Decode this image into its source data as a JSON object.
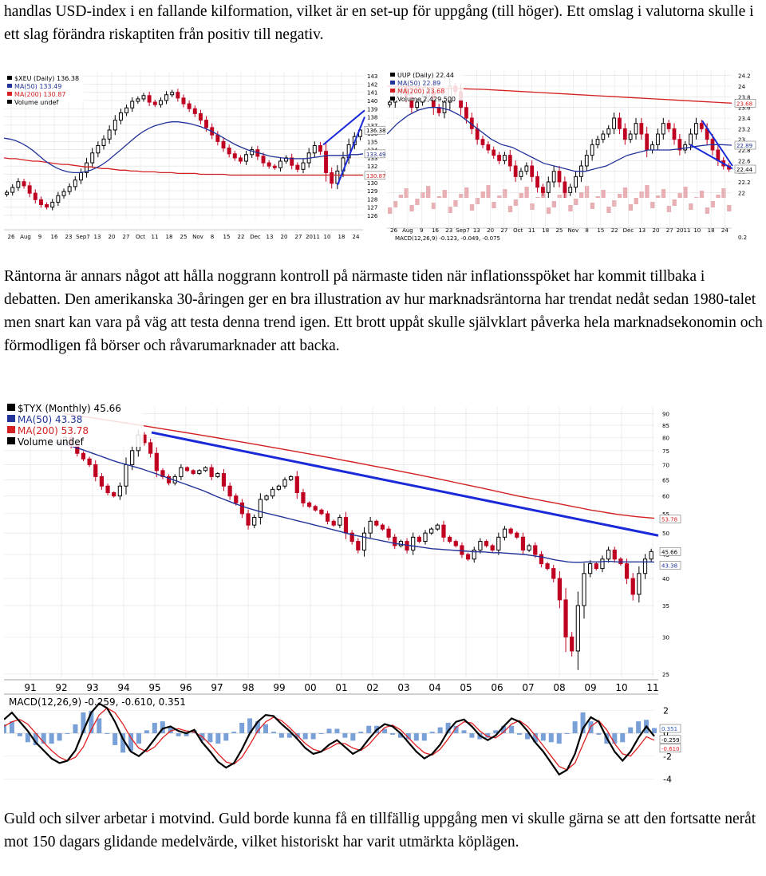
{
  "text": {
    "intro": "handlas USD-index i en fallande kilformation, vilket är en set-up för uppgång (till höger). Ett omslag i valutorna skulle i ett slag förändra riskaptiten från positiv till negativ.",
    "rates": "Räntorna är annars något att hålla noggrann kontroll på närmaste tiden när inflationsspöket har kommit tillbaka i debatten. Den amerikanska 30-åringen ger en bra illustration av hur marknadsräntorna har trendat nedåt sedan 1980-talet men snart kan vara på väg att testa denna trend igen. Ett brott uppåt skulle självklart påverka hela marknadsekonomin och förmodligen få börser och råvarumarknader att backa.",
    "gold": "Guld och silver arbetar i motvind. Guld borde kunna få en tillfällig uppgång men vi skulle gärna se att den fortsatte neråt mot 150 dagars glidande medelvärde, vilket historiskt har varit utmärkta köplägen."
  },
  "colors": {
    "candle_up": "#000000",
    "candle_down": "#c00020",
    "ma50": "#223399",
    "ma200": "#d42020",
    "trend": "#1a2ad8",
    "volume": "#e8b0b4",
    "grid": "#e0e0e0"
  },
  "chart_data": [
    {
      "type": "candlestick",
      "legend": [
        "$XEU (Daily) 136.38",
        "MA(50) 133.49",
        "MA(200) 130.87",
        "Volume undef"
      ],
      "x_ticks": [
        "26",
        "Aug",
        "9",
        "16",
        "23",
        "Sep7",
        "13",
        "20",
        "27",
        "Oct",
        "11",
        "18",
        "25",
        "Nov",
        "8",
        "15",
        "22",
        "Dec",
        "13",
        "20",
        "27",
        "2011",
        "10",
        "18",
        "24"
      ],
      "y_ticks": [
        143,
        142,
        141,
        140,
        139,
        138,
        137,
        136,
        135,
        134,
        133,
        132,
        131,
        130,
        129,
        128,
        127,
        126
      ],
      "ylim": [
        125.5,
        143.5
      ],
      "price_tags": {
        "last": "136.38",
        "ma50": "133.49",
        "ma200": "130.87"
      },
      "close": [
        128.8,
        129.4,
        130.1,
        129.6,
        128.7,
        127.9,
        127.3,
        127.0,
        127.6,
        128.4,
        128.9,
        129.5,
        130.3,
        131.2,
        132.4,
        133.6,
        134.5,
        135.3,
        136.4,
        137.6,
        138.5,
        139.1,
        139.9,
        140.2,
        140.6,
        139.8,
        139.5,
        140.0,
        140.7,
        141.0,
        140.3,
        139.6,
        139.0,
        138.4,
        137.6,
        136.7,
        135.8,
        135.0,
        134.2,
        133.5,
        133.0,
        132.6,
        133.4,
        134.0,
        133.2,
        132.4,
        132.0,
        131.8,
        132.6,
        133.0,
        132.1,
        131.6,
        132.4,
        133.6,
        134.5,
        133.8,
        131.2,
        129.9,
        131.4,
        133.0,
        134.6,
        135.6,
        136.4
      ],
      "ma50": [
        135.4,
        135.3,
        135.1,
        134.8,
        134.4,
        133.9,
        133.3,
        132.7,
        132.2,
        131.8,
        131.5,
        131.3,
        131.2,
        131.2,
        131.3,
        131.5,
        131.8,
        132.2,
        132.7,
        133.3,
        133.9,
        134.5,
        135.1,
        135.7,
        136.2,
        136.6,
        136.9,
        137.1,
        137.3,
        137.4,
        137.4,
        137.3,
        137.2,
        137.0,
        136.8,
        136.5,
        136.2,
        135.8,
        135.4,
        135.0,
        134.6,
        134.3,
        134.0,
        133.8,
        133.6,
        133.4,
        133.2,
        133.1,
        133.0,
        132.9,
        132.9,
        132.9,
        132.9,
        133.0,
        133.1,
        133.2,
        133.3,
        133.3,
        133.3,
        133.3,
        133.4,
        133.4,
        133.5
      ],
      "ma200": [
        133.0,
        132.9,
        132.9,
        132.8,
        132.7,
        132.6,
        132.6,
        132.5,
        132.4,
        132.3,
        132.2,
        132.2,
        132.1,
        132.0,
        131.9,
        131.9,
        131.8,
        131.7,
        131.7,
        131.6,
        131.5,
        131.5,
        131.4,
        131.4,
        131.3,
        131.3,
        131.3,
        131.2,
        131.2,
        131.2,
        131.1,
        131.1,
        131.1,
        131.1,
        131.0,
        131.0,
        131.0,
        131.0,
        131.0,
        130.9,
        130.9,
        130.9,
        130.9,
        130.9,
        130.9,
        130.9,
        130.9,
        130.9,
        130.9,
        130.9,
        130.9,
        130.9,
        130.9,
        130.9,
        130.9,
        130.9,
        130.9,
        130.9,
        130.9,
        130.9,
        130.9,
        130.9,
        130.9
      ]
    },
    {
      "type": "candlestick",
      "legend": [
        "UUP (Daily) 22.44",
        "MA(50) 22.89",
        "MA(200) 23.68",
        "Volume 2,429,500"
      ],
      "x_ticks": [
        "26",
        "Aug",
        "9",
        "16",
        "23",
        "Sep7",
        "13",
        "20",
        "27",
        "Oct",
        "11",
        "18",
        "25",
        "Nov",
        "8",
        "15",
        "22",
        "Dec",
        "13",
        "20",
        "27",
        "2011",
        "10",
        "18",
        "24"
      ],
      "y_ticks": [
        24.2,
        24.0,
        23.8,
        23.6,
        23.4,
        23.2,
        23.0,
        22.8,
        22.6,
        22.4,
        22.2,
        22.0
      ],
      "ylim": [
        21.9,
        24.3
      ],
      "price_tags": {
        "ma200": "23.68",
        "ma50": "22.89",
        "last": "22.44"
      },
      "macd_label": "MACD(12,26,9) -0.123, -0.049, -0.075",
      "macd_ticks": [
        "0.2"
      ],
      "close": [
        23.7,
        23.9,
        24.0,
        23.8,
        23.6,
        23.7,
        23.8,
        23.9,
        23.6,
        23.5,
        23.7,
        24.0,
        23.9,
        23.6,
        23.4,
        23.2,
        23.0,
        22.9,
        22.8,
        22.7,
        22.6,
        22.7,
        22.5,
        22.3,
        22.4,
        22.5,
        22.3,
        22.1,
        22.0,
        22.2,
        22.4,
        22.2,
        22.0,
        22.1,
        22.3,
        22.5,
        22.7,
        22.9,
        23.0,
        23.1,
        23.2,
        23.4,
        23.2,
        23.0,
        23.1,
        23.3,
        23.1,
        22.8,
        22.9,
        23.1,
        23.3,
        23.2,
        23.0,
        22.8,
        22.9,
        23.1,
        23.3,
        23.2,
        23.0,
        22.8,
        22.6,
        22.5,
        22.44
      ],
      "ma50": [
        23.1,
        23.3,
        23.45,
        23.55,
        23.6,
        23.6,
        23.55,
        23.45,
        23.3,
        23.15,
        23.0,
        22.9,
        22.85,
        22.75,
        22.65,
        22.55,
        22.5,
        22.45,
        22.4,
        22.4,
        22.45,
        22.5,
        22.6,
        22.7,
        22.75,
        22.8,
        22.8,
        22.8,
        22.82,
        22.85,
        22.88,
        22.9,
        22.9,
        22.89
      ],
      "ma200": [
        24.0,
        23.99,
        23.98,
        23.96,
        23.95,
        23.94,
        23.92,
        23.9,
        23.88,
        23.86,
        23.84,
        23.82,
        23.8,
        23.78,
        23.76,
        23.74,
        23.72,
        23.7,
        23.68
      ]
    },
    {
      "type": "candlestick",
      "legend": [
        "$TYX (Monthly) 45.66",
        "MA(50) 43.38",
        "MA(200) 53.78",
        "Volume undef"
      ],
      "x_ticks": [
        "91",
        "92",
        "93",
        "94",
        "95",
        "96",
        "97",
        "98",
        "99",
        "00",
        "01",
        "02",
        "03",
        "04",
        "05",
        "06",
        "07",
        "08",
        "09",
        "10",
        "11"
      ],
      "y_ticks": [
        90,
        85,
        80,
        75,
        70,
        65,
        60,
        55,
        50,
        45,
        40,
        35,
        30,
        25
      ],
      "y_scale": "log",
      "ylim": [
        24.5,
        93
      ],
      "price_tags": {
        "ma200": "53.78",
        "last": "45.66",
        "ma50": "43.38"
      },
      "close": [
        78,
        80,
        77,
        74,
        72,
        70,
        66,
        63,
        61,
        60,
        63,
        70,
        75,
        81,
        78,
        74,
        68,
        66,
        64,
        66,
        69,
        68,
        67,
        68,
        69,
        66,
        67,
        63,
        60,
        58,
        55,
        52,
        54,
        59,
        60,
        62,
        63,
        65,
        66,
        61,
        58,
        57,
        56,
        55,
        53,
        52,
        54,
        50,
        48,
        46,
        50,
        53,
        52,
        51,
        49,
        47,
        48,
        46,
        49,
        48,
        50,
        51,
        52,
        49,
        48,
        47,
        45,
        44,
        46,
        48,
        47,
        46,
        49,
        51,
        50,
        49,
        46,
        47,
        45,
        43,
        42,
        40,
        36,
        30,
        28,
        35,
        41,
        43,
        42,
        44,
        46,
        44,
        43,
        40,
        37,
        41,
        44,
        45.66
      ],
      "ma50": [
        78,
        77.5,
        77,
        76.3,
        75.6,
        74.8,
        74,
        73.2,
        72.4,
        71.6,
        70.9,
        70.3,
        69.7,
        69.1,
        68.5,
        67.8,
        67.1,
        66.4,
        65.7,
        65,
        64.3,
        63.6,
        62.9,
        62.2,
        61.5,
        60.7,
        59.9,
        59.2,
        58.5,
        57.8,
        57.2,
        56.6,
        56.1,
        55.6,
        55.2,
        54.8,
        54.4,
        54,
        53.6,
        53.2,
        52.8,
        52.4,
        52,
        51.6,
        51.2,
        50.8,
        50.4,
        50,
        49.6,
        49.3,
        49,
        48.7,
        48.4,
        48.1,
        47.8,
        47.5,
        47.3,
        47.1,
        46.9,
        46.7,
        46.5,
        46.3,
        46.2,
        46.1,
        46,
        45.9,
        45.8,
        45.7,
        45.6,
        45.6,
        45.5,
        45.4,
        45.4,
        45.3,
        45.2,
        45.1,
        45,
        44.8,
        44.6,
        44.4,
        44.1,
        43.8,
        43.6,
        43.4,
        43.3,
        43.3,
        43.4,
        43.4,
        43.4,
        43.5,
        43.5,
        43.4,
        43.4,
        43.4,
        43.4,
        43.4,
        43.4,
        43.38
      ],
      "ma200": [
        90,
        89.4,
        88.8,
        88.2,
        87.6,
        87,
        86.4,
        85.8,
        85.2,
        84.6,
        84,
        83.4,
        82.8,
        82.2,
        81.6,
        81,
        80.4,
        79.8,
        79.2,
        78.6,
        78,
        77.4,
        76.8,
        76.2,
        75.6,
        75,
        74.4,
        73.8,
        73.2,
        72.6,
        72,
        71.4,
        70.8,
        70.2,
        69.6,
        69,
        68.4,
        67.8,
        67.2,
        66.6,
        66,
        65.4,
        64.8,
        64.2,
        63.6,
        63,
        62.4,
        61.8,
        61.2,
        60.6,
        60,
        59.5,
        59,
        58.5,
        58,
        57.5,
        57,
        56.5,
        56,
        55.6,
        55.2,
        54.8,
        54.5,
        54.2,
        54,
        53.78
      ],
      "trendline": [
        82,
        49.4
      ],
      "macd_label": "MACD(12,26,9) -0.259, -0.610, 0.351",
      "macd_ticks": [
        2,
        0,
        -2,
        -4
      ],
      "macd_tags": {
        "hist": "0.351",
        "macd": "-0.259",
        "signal": "-0.610"
      },
      "macd_line": [
        1.2,
        1.8,
        1.0,
        0.2,
        -0.8,
        -1.5,
        -2.2,
        -2.6,
        -2.4,
        -1.5,
        0.2,
        1.8,
        2.6,
        2.2,
        1.0,
        -0.5,
        -1.6,
        -2.0,
        -1.4,
        -0.5,
        0.4,
        0.6,
        0.2,
        0.0,
        0.3,
        -0.8,
        -1.6,
        -2.5,
        -3.0,
        -2.6,
        -1.4,
        0.0,
        1.0,
        1.6,
        1.5,
        0.8,
        0.2,
        -0.5,
        -1.3,
        -1.8,
        -1.6,
        -1.0,
        -0.6,
        -1.2,
        -1.8,
        -1.4,
        -0.5,
        0.3,
        0.8,
        0.6,
        0.0,
        -0.8,
        -1.6,
        -2.2,
        -1.8,
        -1.0,
        0.2,
        1.0,
        1.2,
        0.6,
        -0.2,
        -0.6,
        -0.2,
        0.6,
        1.3,
        1.0,
        0.2,
        -0.8,
        -1.6,
        -2.6,
        -3.6,
        -3.2,
        -1.8,
        0.4,
        1.4,
        1.0,
        -0.4,
        -1.6,
        -2.4,
        -1.6,
        -0.4,
        0.6,
        -0.259
      ],
      "macd_signal": [
        0.6,
        1.0,
        1.2,
        0.8,
        0.0,
        -0.8,
        -1.5,
        -2.1,
        -2.4,
        -2.1,
        -1.2,
        0.3,
        1.6,
        2.2,
        1.8,
        0.8,
        -0.4,
        -1.3,
        -1.6,
        -1.2,
        -0.4,
        0.2,
        0.4,
        0.2,
        0.1,
        -0.3,
        -1.0,
        -1.8,
        -2.5,
        -2.7,
        -2.1,
        -1.0,
        0.2,
        1.0,
        1.4,
        1.1,
        0.5,
        -0.2,
        -0.9,
        -1.4,
        -1.6,
        -1.3,
        -0.9,
        -0.9,
        -1.3,
        -1.5,
        -1.0,
        -0.2,
        0.5,
        0.7,
        0.3,
        -0.4,
        -1.1,
        -1.7,
        -1.9,
        -1.4,
        -0.5,
        0.5,
        1.0,
        0.9,
        0.2,
        -0.3,
        -0.4,
        0.1,
        0.8,
        1.1,
        0.6,
        -0.2,
        -1.1,
        -2.0,
        -2.9,
        -3.2,
        -2.6,
        -1.0,
        0.6,
        1.1,
        0.3,
        -0.9,
        -1.8,
        -2.0,
        -1.2,
        -0.3,
        -0.61
      ]
    }
  ]
}
